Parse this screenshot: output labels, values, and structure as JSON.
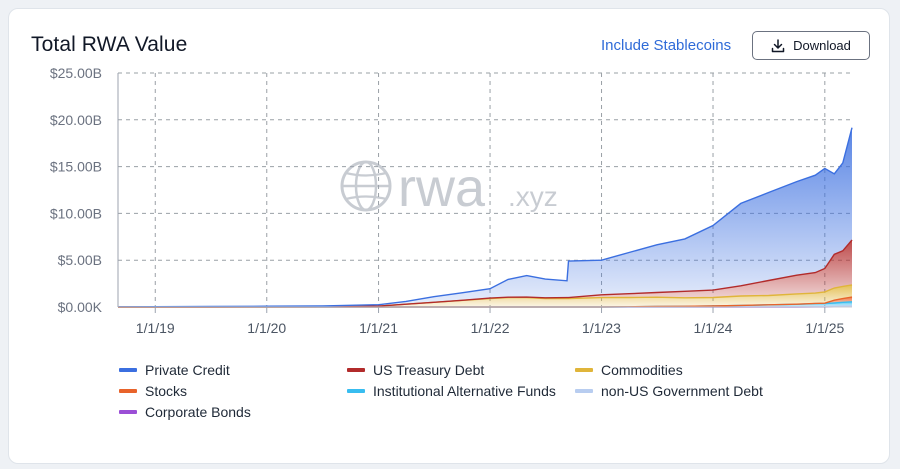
{
  "header": {
    "title": "Total RWA Value",
    "stablecoins_label": "Include Stablecoins",
    "download_label": "Download"
  },
  "watermark": {
    "brand": "rwa",
    "suffix": ".xyz"
  },
  "chart_data": {
    "type": "area",
    "stacked": true,
    "title": "Total RWA Value",
    "xlabel": "",
    "ylabel": "",
    "x_ticks": [
      "1/1/19",
      "1/1/20",
      "1/1/21",
      "1/1/22",
      "1/1/23",
      "1/1/24",
      "1/1/25"
    ],
    "y_ticks": [
      "$0.00K",
      "$5.00B",
      "$10.00B",
      "$15.00B",
      "$20.00B",
      "$25.00B"
    ],
    "ylim": [
      0,
      25
    ],
    "y_unit": "B USD",
    "x_range": [
      "2018-09-01",
      "2025-03-31"
    ],
    "grid": true,
    "legend_position": "bottom",
    "x": [
      "2018-09-01",
      "2019-01-01",
      "2019-07-01",
      "2020-01-01",
      "2020-07-01",
      "2021-01-01",
      "2021-04-01",
      "2021-07-01",
      "2021-10-01",
      "2022-01-01",
      "2022-03-01",
      "2022-05-01",
      "2022-07-01",
      "2022-09-10",
      "2022-09-15",
      "2023-01-01",
      "2023-04-01",
      "2023-07-01",
      "2023-10-01",
      "2024-01-01",
      "2024-04-01",
      "2024-07-01",
      "2024-10-01",
      "2024-12-01",
      "2025-01-01",
      "2025-02-01",
      "2025-03-01",
      "2025-03-31"
    ],
    "series": [
      {
        "name": "Private Credit",
        "color": "#3b6fe0",
        "values": [
          0.02,
          0.03,
          0.05,
          0.08,
          0.1,
          0.15,
          0.3,
          0.6,
          0.8,
          1.0,
          1.9,
          2.3,
          2.0,
          1.8,
          3.9,
          3.7,
          4.4,
          5.1,
          5.6,
          6.9,
          8.8,
          9.4,
          10.0,
          10.4,
          10.7,
          8.6,
          9.4,
          12.0
        ]
      },
      {
        "name": "US Treasury Debt",
        "color": "#b22b2b",
        "values": [
          0,
          0,
          0,
          0,
          0,
          0,
          0,
          0,
          0.02,
          0.05,
          0.05,
          0.06,
          0.08,
          0.1,
          0.1,
          0.3,
          0.4,
          0.5,
          0.7,
          0.8,
          1.1,
          1.6,
          2.0,
          2.2,
          2.5,
          3.6,
          3.8,
          4.8
        ]
      },
      {
        "name": "Commodities",
        "color": "#e0b53a",
        "values": [
          0,
          0,
          0,
          0.01,
          0.02,
          0.1,
          0.3,
          0.5,
          0.7,
          0.9,
          1.0,
          1.0,
          0.9,
          0.9,
          0.9,
          1.0,
          1.0,
          1.0,
          0.9,
          0.9,
          1.0,
          1.0,
          1.1,
          1.1,
          1.2,
          1.3,
          1.3,
          1.3
        ]
      },
      {
        "name": "Stocks",
        "color": "#e8632a",
        "values": [
          0,
          0,
          0,
          0,
          0,
          0,
          0,
          0,
          0,
          0,
          0,
          0,
          0,
          0,
          0,
          0,
          0,
          0,
          0,
          0,
          0,
          0,
          0.01,
          0.02,
          0.05,
          0.3,
          0.4,
          0.5
        ]
      },
      {
        "name": "Institutional Alternative Funds",
        "color": "#38bdf0",
        "values": [
          0,
          0,
          0,
          0,
          0,
          0,
          0,
          0,
          0,
          0,
          0,
          0,
          0,
          0,
          0,
          0,
          0.02,
          0.05,
          0.08,
          0.1,
          0.15,
          0.2,
          0.25,
          0.3,
          0.3,
          0.35,
          0.4,
          0.45
        ]
      },
      {
        "name": "non-US Government Debt",
        "color": "#b8cdf0",
        "values": [
          0,
          0,
          0,
          0,
          0,
          0,
          0,
          0,
          0,
          0,
          0,
          0,
          0,
          0,
          0,
          0,
          0,
          0,
          0,
          0.01,
          0.02,
          0.03,
          0.04,
          0.05,
          0.05,
          0.06,
          0.07,
          0.08
        ]
      },
      {
        "name": "Corporate Bonds",
        "color": "#9b4fd6",
        "values": [
          0,
          0,
          0,
          0,
          0,
          0,
          0,
          0,
          0,
          0,
          0,
          0,
          0,
          0,
          0,
          0,
          0,
          0,
          0,
          0,
          0,
          0,
          0,
          0.01,
          0.01,
          0.02,
          0.03,
          0.03
        ]
      }
    ]
  }
}
